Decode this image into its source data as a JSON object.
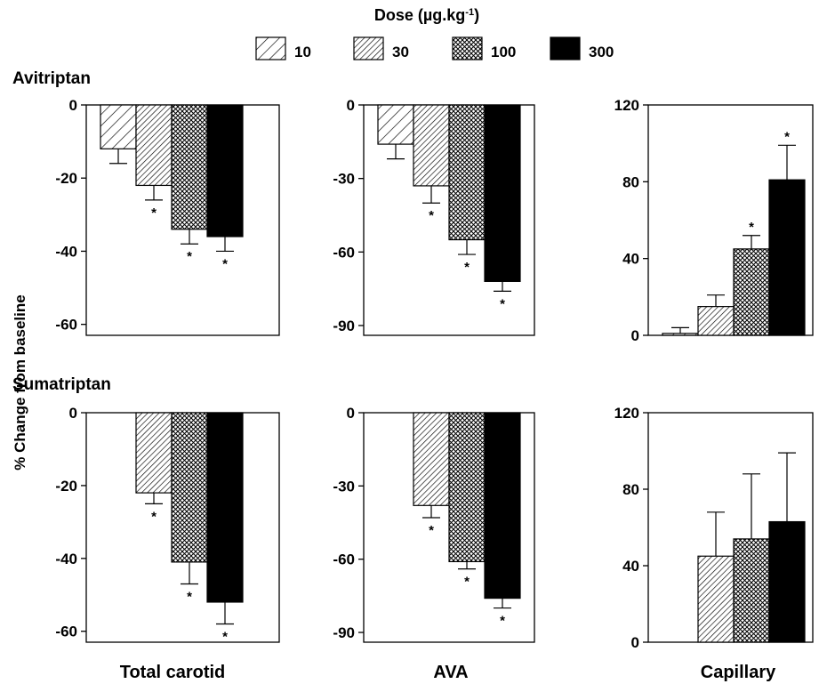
{
  "legend": {
    "title": "Dose (µg.kg",
    "title_sup": "-1",
    "title_close": ")",
    "entries": [
      {
        "label": "10",
        "pattern": "sparse-hatch"
      },
      {
        "label": "30",
        "pattern": "dense-hatch"
      },
      {
        "label": "100",
        "pattern": "crosshatch"
      },
      {
        "label": "300",
        "pattern": "solid"
      }
    ]
  },
  "row_titles": [
    "Avitriptan",
    "Sumatriptan"
  ],
  "ylabel": "% Change from baseline",
  "column_labels": [
    "Total carotid",
    "AVA",
    "Capillary"
  ],
  "chart_data": [
    {
      "type": "bar",
      "drug": "Avitriptan",
      "panel": "Total carotid",
      "categories": [
        "10",
        "30",
        "100",
        "300"
      ],
      "values": [
        -12,
        -22,
        -34,
        -36
      ],
      "errors": [
        4,
        4,
        4,
        4
      ],
      "significant": [
        false,
        true,
        true,
        true
      ],
      "ylim": [
        -63,
        0
      ],
      "yticks": [
        0,
        -20,
        -40,
        -60
      ],
      "ytick_labels": [
        "0",
        "-20",
        "-40",
        "-60"
      ]
    },
    {
      "type": "bar",
      "drug": "Avitriptan",
      "panel": "AVA",
      "categories": [
        "10",
        "30",
        "100",
        "300"
      ],
      "values": [
        -16,
        -33,
        -55,
        -72
      ],
      "errors": [
        6,
        7,
        6,
        4
      ],
      "significant": [
        false,
        true,
        true,
        true
      ],
      "ylim": [
        -94,
        0
      ],
      "yticks": [
        0,
        -30,
        -60,
        -90
      ],
      "ytick_labels": [
        "0",
        "-30",
        "-60",
        "-90"
      ]
    },
    {
      "type": "bar",
      "drug": "Avitriptan",
      "panel": "Capillary",
      "categories": [
        "10",
        "30",
        "100",
        "300"
      ],
      "values": [
        1,
        15,
        45,
        81
      ],
      "errors": [
        3,
        6,
        7,
        18
      ],
      "significant": [
        false,
        false,
        true,
        true
      ],
      "ylim": [
        0,
        120
      ],
      "yticks": [
        0,
        40,
        80,
        120
      ],
      "ytick_labels": [
        "0",
        "40",
        "80",
        "120"
      ]
    },
    {
      "type": "bar",
      "drug": "Sumatriptan",
      "panel": "Total carotid",
      "categories": [
        "10",
        "30",
        "100",
        "300"
      ],
      "values": [
        null,
        -22,
        -41,
        -52
      ],
      "errors": [
        null,
        3,
        6,
        6
      ],
      "significant": [
        false,
        true,
        true,
        true
      ],
      "ylim": [
        -63,
        0
      ],
      "yticks": [
        0,
        -20,
        -40,
        -60
      ],
      "ytick_labels": [
        "0",
        "-20",
        "-40",
        "-60"
      ]
    },
    {
      "type": "bar",
      "drug": "Sumatriptan",
      "panel": "AVA",
      "categories": [
        "10",
        "30",
        "100",
        "300"
      ],
      "values": [
        null,
        -38,
        -61,
        -76
      ],
      "errors": [
        null,
        5,
        3,
        4
      ],
      "significant": [
        false,
        true,
        true,
        true
      ],
      "ylim": [
        -94,
        0
      ],
      "yticks": [
        0,
        -30,
        -60,
        -90
      ],
      "ytick_labels": [
        "0",
        "-30",
        "-60",
        "-90"
      ]
    },
    {
      "type": "bar",
      "drug": "Sumatriptan",
      "panel": "Capillary",
      "categories": [
        "10",
        "30",
        "100",
        "300"
      ],
      "values": [
        null,
        45,
        54,
        63
      ],
      "errors": [
        null,
        23,
        34,
        36
      ],
      "significant": [
        false,
        false,
        false,
        false
      ],
      "ylim": [
        0,
        120
      ],
      "yticks": [
        0,
        40,
        80,
        120
      ],
      "ytick_labels": [
        "0",
        "40",
        "80",
        "120"
      ]
    }
  ]
}
